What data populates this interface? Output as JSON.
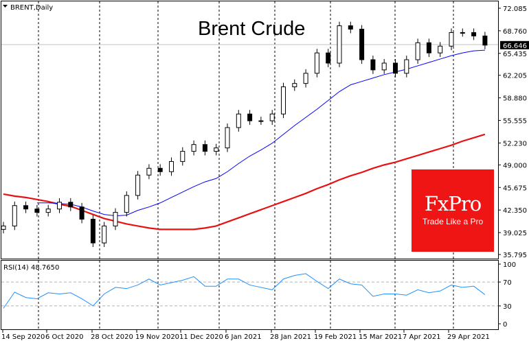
{
  "header": {
    "symbol_label": "BRENT,Daily",
    "chart_title": "Brent Crude"
  },
  "logo": {
    "brand": "FxPro",
    "tagline": "Trade Like a Pro",
    "color": "#f01515"
  },
  "chart_data": [
    {
      "type": "candlestick",
      "title": "Brent Crude",
      "ylim": [
        35.795,
        72.085
      ],
      "y_ticks": [
        "72.085",
        "68.760",
        "65.435",
        "62.205",
        "58.880",
        "55.555",
        "52.230",
        "49.000",
        "45.675",
        "42.350",
        "39.025",
        "35.795"
      ],
      "current_price": "66.646",
      "x_tick_labels": [
        "14 Sep 2020",
        "6 Oct 2020",
        "28 Oct 2020",
        "19 Nov 2020",
        "11 Dec 2020",
        "6 Jan 2021",
        "28 Jan 2021",
        "19 Feb 2021",
        "15 Mar 2021",
        "7 Apr 2021",
        "29 Apr 2021"
      ],
      "grid": "vertical dashed",
      "series": [
        {
          "kind": "close",
          "color": "#000000",
          "values": [
            40.0,
            43.0,
            42.5,
            42.0,
            42.5,
            43.5,
            42.8,
            41.0,
            37.5,
            40.0,
            42.0,
            44.5,
            47.5,
            48.5,
            48.0,
            49.5,
            51.0,
            52.0,
            51.0,
            51.5,
            54.5,
            56.5,
            55.5,
            55.5,
            56.5,
            60.5,
            61.0,
            62.5,
            65.5,
            64.0,
            69.5,
            69.0,
            64.5,
            63.0,
            64.0,
            62.5,
            64.5,
            67.0,
            65.5,
            66.5,
            68.5,
            68.5,
            68.0,
            66.646
          ]
        },
        {
          "kind": "moving-average",
          "color": "#0000ff",
          "values": [
            null,
            null,
            null,
            43.4,
            43.4,
            43.3,
            43.2,
            42.8,
            42.2,
            41.7,
            41.5,
            41.6,
            42.3,
            42.8,
            43.4,
            44.2,
            45.0,
            45.8,
            46.5,
            47.0,
            48.0,
            49.2,
            50.3,
            51.2,
            52.2,
            53.5,
            54.8,
            56.0,
            57.2,
            58.5,
            59.8,
            60.8,
            61.3,
            61.8,
            62.3,
            62.7,
            63.1,
            63.6,
            64.1,
            64.6,
            65.1,
            65.5,
            65.8,
            65.9
          ]
        },
        {
          "kind": "moving-average",
          "color": "#e81010",
          "values": [
            44.7,
            44.4,
            44.2,
            43.9,
            43.6,
            43.2,
            42.9,
            42.3,
            41.7,
            41.1,
            40.7,
            40.3,
            40.0,
            39.7,
            39.5,
            39.5,
            39.5,
            39.5,
            39.7,
            40.0,
            40.6,
            41.2,
            41.8,
            42.4,
            43.0,
            43.6,
            44.2,
            44.8,
            45.5,
            46.1,
            46.8,
            47.4,
            47.9,
            48.5,
            49.0,
            49.4,
            49.9,
            50.4,
            50.9,
            51.4,
            51.9,
            52.5,
            53.0,
            53.5
          ]
        }
      ]
    },
    {
      "type": "line",
      "label": "RSI(14) 48.7650",
      "ylim": [
        0,
        100
      ],
      "y_ticks": [
        "100",
        "70",
        "30",
        "0"
      ],
      "levels": [
        70,
        30
      ],
      "color": "#1e90ff",
      "values": [
        26,
        53,
        44,
        42,
        52,
        50,
        52,
        42,
        30,
        50,
        61,
        59,
        65,
        75,
        65,
        69,
        73,
        79,
        63,
        63,
        75,
        75,
        65,
        61,
        57,
        75,
        81,
        84,
        71,
        59,
        75,
        67,
        65,
        46,
        50,
        50,
        48,
        57,
        52,
        55,
        65,
        61,
        63,
        48.8
      ]
    }
  ]
}
